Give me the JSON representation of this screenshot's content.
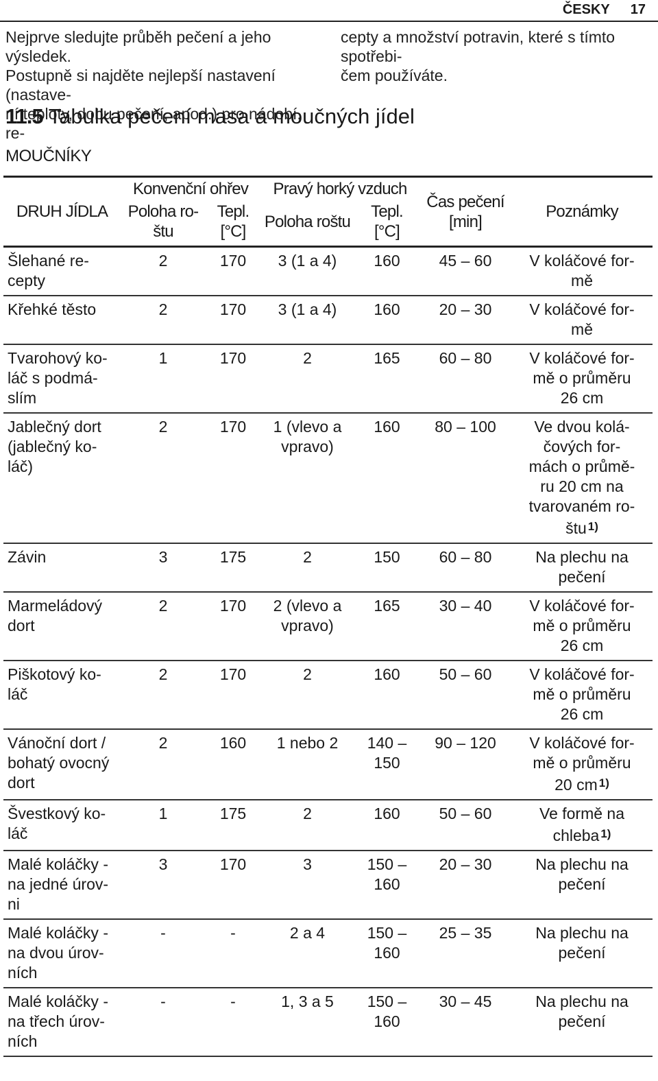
{
  "page_header": {
    "language": "ČESKY",
    "page_number": "17"
  },
  "intro": {
    "left": "Nejprve sledujte průběh pečení a jeho výsledek.\nPostupně si najděte nejlepší nastavení (nastave-\nní teploty, dobu pečení, apod.) pro nádobí, re-",
    "right": "cepty a množství potravin, které s tímto spotřebi-\nčem používáte."
  },
  "section": {
    "number": "11.5",
    "title": "Tabulka pečení masa a moučných jídel"
  },
  "subsection_title": "MOUČNÍKY",
  "table": {
    "headers": {
      "dish": "DRUH JÍDLA",
      "conventional": "Konvenční ohřev",
      "hot_air": "Pravý horký vzduch",
      "shelf_conv": "Poloha ro-\nštu",
      "temp_conv": "Tepl.\n[°C]",
      "shelf_air": "Poloha roštu",
      "temp_air": "Tepl.\n[°C]",
      "time": "Čas pečení\n[min]",
      "notes": "Poznámky"
    },
    "rows": [
      {
        "dish": "Šlehané re-\ncepty",
        "conv_shelf": "2",
        "conv_temp": "170",
        "air_shelf": "3 (1 a 4)",
        "air_temp": "160",
        "time": "45 – 60",
        "note": "V koláčové for-\nmě",
        "note_ref": ""
      },
      {
        "dish": "Křehké těsto",
        "conv_shelf": "2",
        "conv_temp": "170",
        "air_shelf": "3 (1 a 4)",
        "air_temp": "160",
        "time": "20 – 30",
        "note": "V koláčové for-\nmě",
        "note_ref": ""
      },
      {
        "dish": "Tvarohový ko-\nláč s podmá-\nslím",
        "conv_shelf": "1",
        "conv_temp": "170",
        "air_shelf": "2",
        "air_temp": "165",
        "time": "60 – 80",
        "note": "V koláčové for-\nmě o průměru\n26 cm",
        "note_ref": ""
      },
      {
        "dish": "Jablečný dort\n(jablečný ko-\nláč)",
        "conv_shelf": "2",
        "conv_temp": "170",
        "air_shelf": "1 (vlevo a\nvpravo)",
        "air_temp": "160",
        "time": "80 – 100",
        "note": "Ve dvou kolá-\nčových for-\nmách o průmě-\nru 20 cm na\ntvarovaném ro-\nštu",
        "note_ref": "1)"
      },
      {
        "dish": "Závin",
        "conv_shelf": "3",
        "conv_temp": "175",
        "air_shelf": "2",
        "air_temp": "150",
        "time": "60 – 80",
        "note": "Na plechu na\npečení",
        "note_ref": ""
      },
      {
        "dish": "Marmeládový\ndort",
        "conv_shelf": "2",
        "conv_temp": "170",
        "air_shelf": "2 (vlevo a\nvpravo)",
        "air_temp": "165",
        "time": "30 – 40",
        "note": "V koláčové for-\nmě o průměru\n26 cm",
        "note_ref": ""
      },
      {
        "dish": "Piškotový ko-\nláč",
        "conv_shelf": "2",
        "conv_temp": "170",
        "air_shelf": "2",
        "air_temp": "160",
        "time": "50 – 60",
        "note": "V koláčové for-\nmě o průměru\n26 cm",
        "note_ref": ""
      },
      {
        "dish": "Vánoční dort /\nbohatý ovocný\ndort",
        "conv_shelf": "2",
        "conv_temp": "160",
        "air_shelf": "1 nebo 2",
        "air_temp": "140 –\n150",
        "time": "90 – 120",
        "note": "V koláčové for-\nmě o průměru\n20 cm",
        "note_ref": "1)"
      },
      {
        "dish": "Švestkový ko-\nláč",
        "conv_shelf": "1",
        "conv_temp": "175",
        "air_shelf": "2",
        "air_temp": "160",
        "time": "50 – 60",
        "note": "Ve formě na\nchleba",
        "note_ref": "1)"
      },
      {
        "dish": "Malé koláčky -\nna jedné úrov-\nni",
        "conv_shelf": "3",
        "conv_temp": "170",
        "air_shelf": "3",
        "air_temp": "150 –\n160",
        "time": "20 – 30",
        "note": "Na plechu na\npečení",
        "note_ref": ""
      },
      {
        "dish": "Malé koláčky -\nna dvou úrov-\nních",
        "conv_shelf": "-",
        "conv_temp": "-",
        "air_shelf": "2 a 4",
        "air_temp": "150 –\n160",
        "time": "25 – 35",
        "note": "Na plechu na\npečení",
        "note_ref": ""
      },
      {
        "dish": "Malé koláčky -\nna třech úrov-\nních",
        "conv_shelf": "-",
        "conv_temp": "-",
        "air_shelf": "1, 3 a 5",
        "air_temp": "150 –\n160",
        "time": "30 – 45",
        "note": "Na plechu na\npečení",
        "note_ref": ""
      }
    ]
  }
}
